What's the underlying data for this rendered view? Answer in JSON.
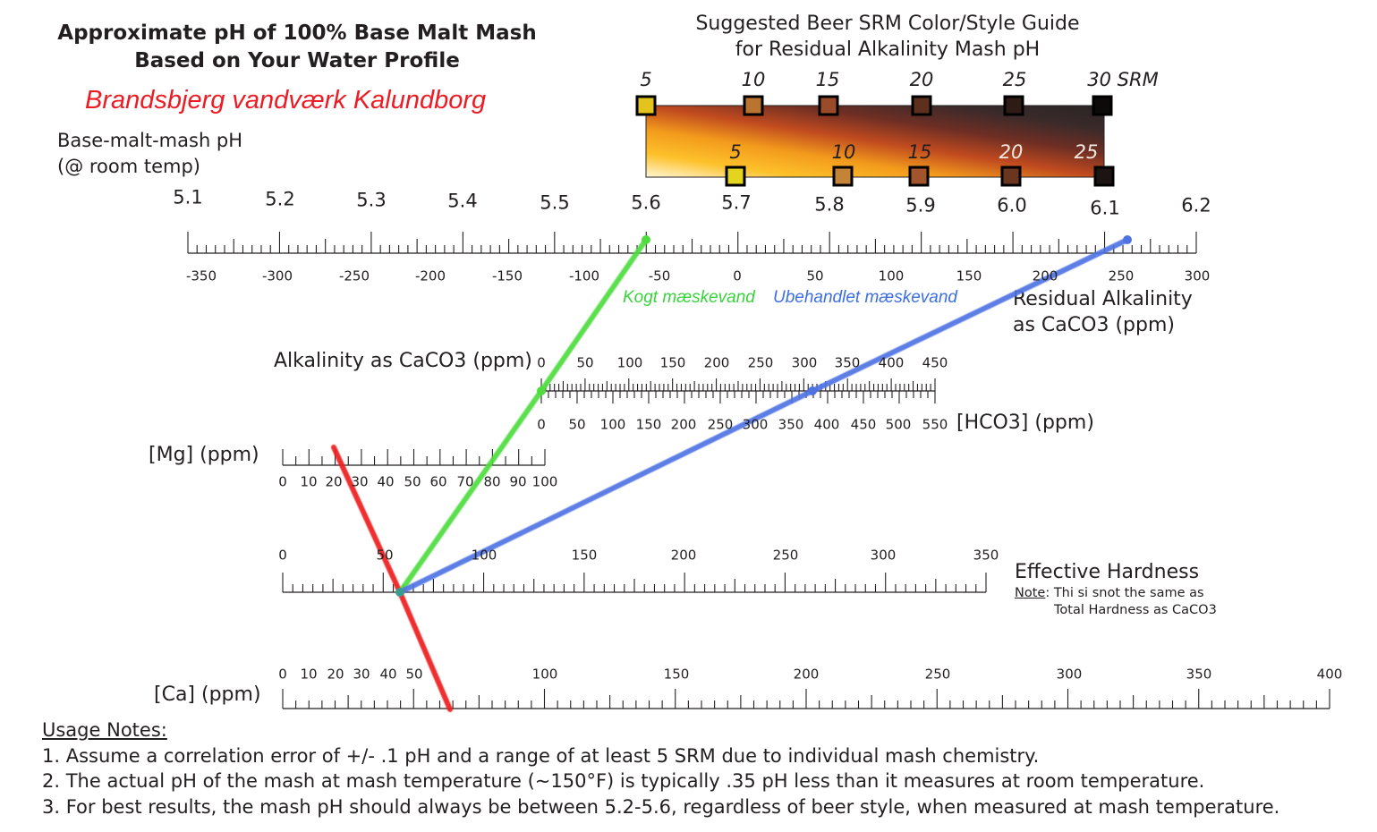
{
  "title": {
    "line1": "Approximate pH of 100% Base Malt Mash",
    "line2": "Based on Your Water Profile"
  },
  "location": "Brandsbjerg vandværk Kalundborg",
  "srm_guide": {
    "title_line1": "Suggested Beer SRM Color/Style Guide",
    "title_line2": "for Residual Alkalinity Mash pH",
    "top_labels": [
      "5",
      "10",
      "15",
      "20",
      "25",
      "30 SRM"
    ],
    "bottom_labels": [
      "5",
      "10",
      "15",
      "20",
      "25"
    ],
    "top_swatch_colors": [
      "#e3c41d",
      "#b9742f",
      "#9a4c2a",
      "#5d2f1d",
      "#2e1b16",
      "#0d0a09"
    ],
    "bottom_swatch_colors": [
      "#e3d41f",
      "#c48438",
      "#a2542d",
      "#6a3620",
      "#1c1412"
    ],
    "gradient_colors": [
      "#fff7d6",
      "#fdc12a",
      "#f39b1c",
      "#c04a1f",
      "#6e2e24",
      "#3a2a2a",
      "#2a2424"
    ]
  },
  "ph_scale": {
    "label_line1": "Base-malt-mash pH",
    "label_line2": "(@ room temp)",
    "ticks": [
      "5.1",
      "5.2",
      "5.3",
      "5.4",
      "5.5",
      "5.6",
      "5.7",
      "5.8",
      "5.9",
      "6.0",
      "6.1",
      "6.2"
    ]
  },
  "ra_scale": {
    "label_line1": "Residual Alkalinity",
    "label_line2": "as CaCO3 (ppm)",
    "ticks": [
      "-350",
      "-300",
      "-250",
      "-200",
      "-150",
      "-100",
      "-50",
      "0",
      "50",
      "100",
      "150",
      "200",
      "250",
      "300"
    ]
  },
  "alkalinity_scale": {
    "label": "Alkalinity as CaCO3 (ppm)",
    "ticks": [
      "0",
      "50",
      "100",
      "150",
      "200",
      "250",
      "300",
      "350",
      "400",
      "450"
    ]
  },
  "hco3_scale": {
    "label": "[HCO3] (ppm)",
    "ticks": [
      "0",
      "50",
      "100",
      "150",
      "200",
      "250",
      "300",
      "350",
      "400",
      "450",
      "500",
      "550"
    ]
  },
  "mg_scale": {
    "label": "[Mg] (ppm)",
    "ticks": [
      "0",
      "10",
      "20",
      "30",
      "40",
      "50",
      "60",
      "70",
      "80",
      "90",
      "100"
    ]
  },
  "hardness_scale": {
    "label": "Effective Hardness",
    "note_prefix": "Note",
    "note_line1": ": Thi si snot the same as",
    "note_line2": "Total Hardness as CaCO3",
    "ticks": [
      "0",
      "50",
      "100",
      "150",
      "200",
      "250",
      "300",
      "350"
    ]
  },
  "ca_scale": {
    "label": "[Ca] (ppm)",
    "ticks": [
      "0",
      "10",
      "20",
      "30",
      "40",
      "50",
      "100",
      "150",
      "200",
      "250",
      "300",
      "350",
      "400"
    ]
  },
  "lines": {
    "green_label": "Kogt mæskevand",
    "blue_label": "Ubehandlet mæskevand",
    "green_color": "#4fdc3f",
    "blue_color": "#4f73e3",
    "red_color": "#ee1c1c",
    "green_label_color": "#39d43b",
    "blue_label_color": "#3c6ee4"
  },
  "usage_notes": {
    "title": "Usage Notes:",
    "items": [
      "1. Assume a correlation error of +/- .1 pH and a range of at least 5 SRM due to individual mash chemistry.",
      "2. The actual pH of the mash at mash temperature (~150°F) is typically .35 pH less than it measures at room temperature.",
      "3. For best results, the mash pH should always be between 5.2-5.6, regardless of beer style, when measured at mash temperature."
    ]
  }
}
